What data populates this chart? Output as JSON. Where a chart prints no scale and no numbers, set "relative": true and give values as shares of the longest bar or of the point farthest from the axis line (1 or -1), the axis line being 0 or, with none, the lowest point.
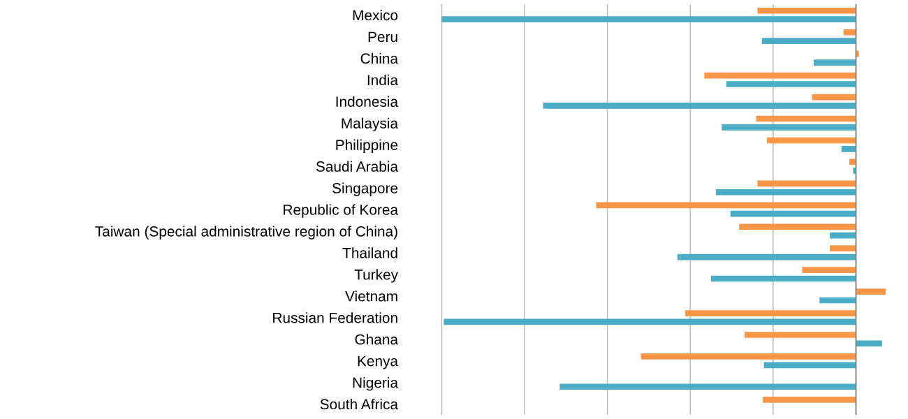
{
  "chart_data": {
    "type": "bar",
    "orientation": "horizontal",
    "relative": true,
    "grid": "x",
    "legend": false,
    "categories": [
      "Mexico",
      "Peru",
      "China",
      "India",
      "Indonesia",
      "Malaysia",
      "Philippine",
      "Saudi Arabia",
      "Singapore",
      "Republic of Korea",
      "Taiwan (Special administrative region of China)",
      "Thailand",
      "Turkey",
      "Vietnam",
      "Russian Federation",
      "Ghana",
      "Kenya",
      "Nigeria",
      "South Africa"
    ],
    "series": [
      {
        "color": "#f79646",
        "values": [
          -0.238,
          -0.03,
          0.007,
          -0.366,
          -0.106,
          -0.241,
          -0.215,
          -0.016,
          -0.238,
          -0.627,
          -0.282,
          -0.063,
          -0.13,
          0.072,
          -0.412,
          -0.269,
          -0.519,
          0,
          -0.225
        ]
      },
      {
        "color": "#4bacc6",
        "values": [
          -1,
          -0.227,
          -0.102,
          -0.313,
          -0.755,
          -0.324,
          -0.035,
          -0.007,
          -0.338,
          -0.303,
          -0.063,
          -0.431,
          -0.35,
          -0.088,
          -0.995,
          0.063,
          -0.222,
          -0.715,
          null
        ]
      }
    ]
  }
}
